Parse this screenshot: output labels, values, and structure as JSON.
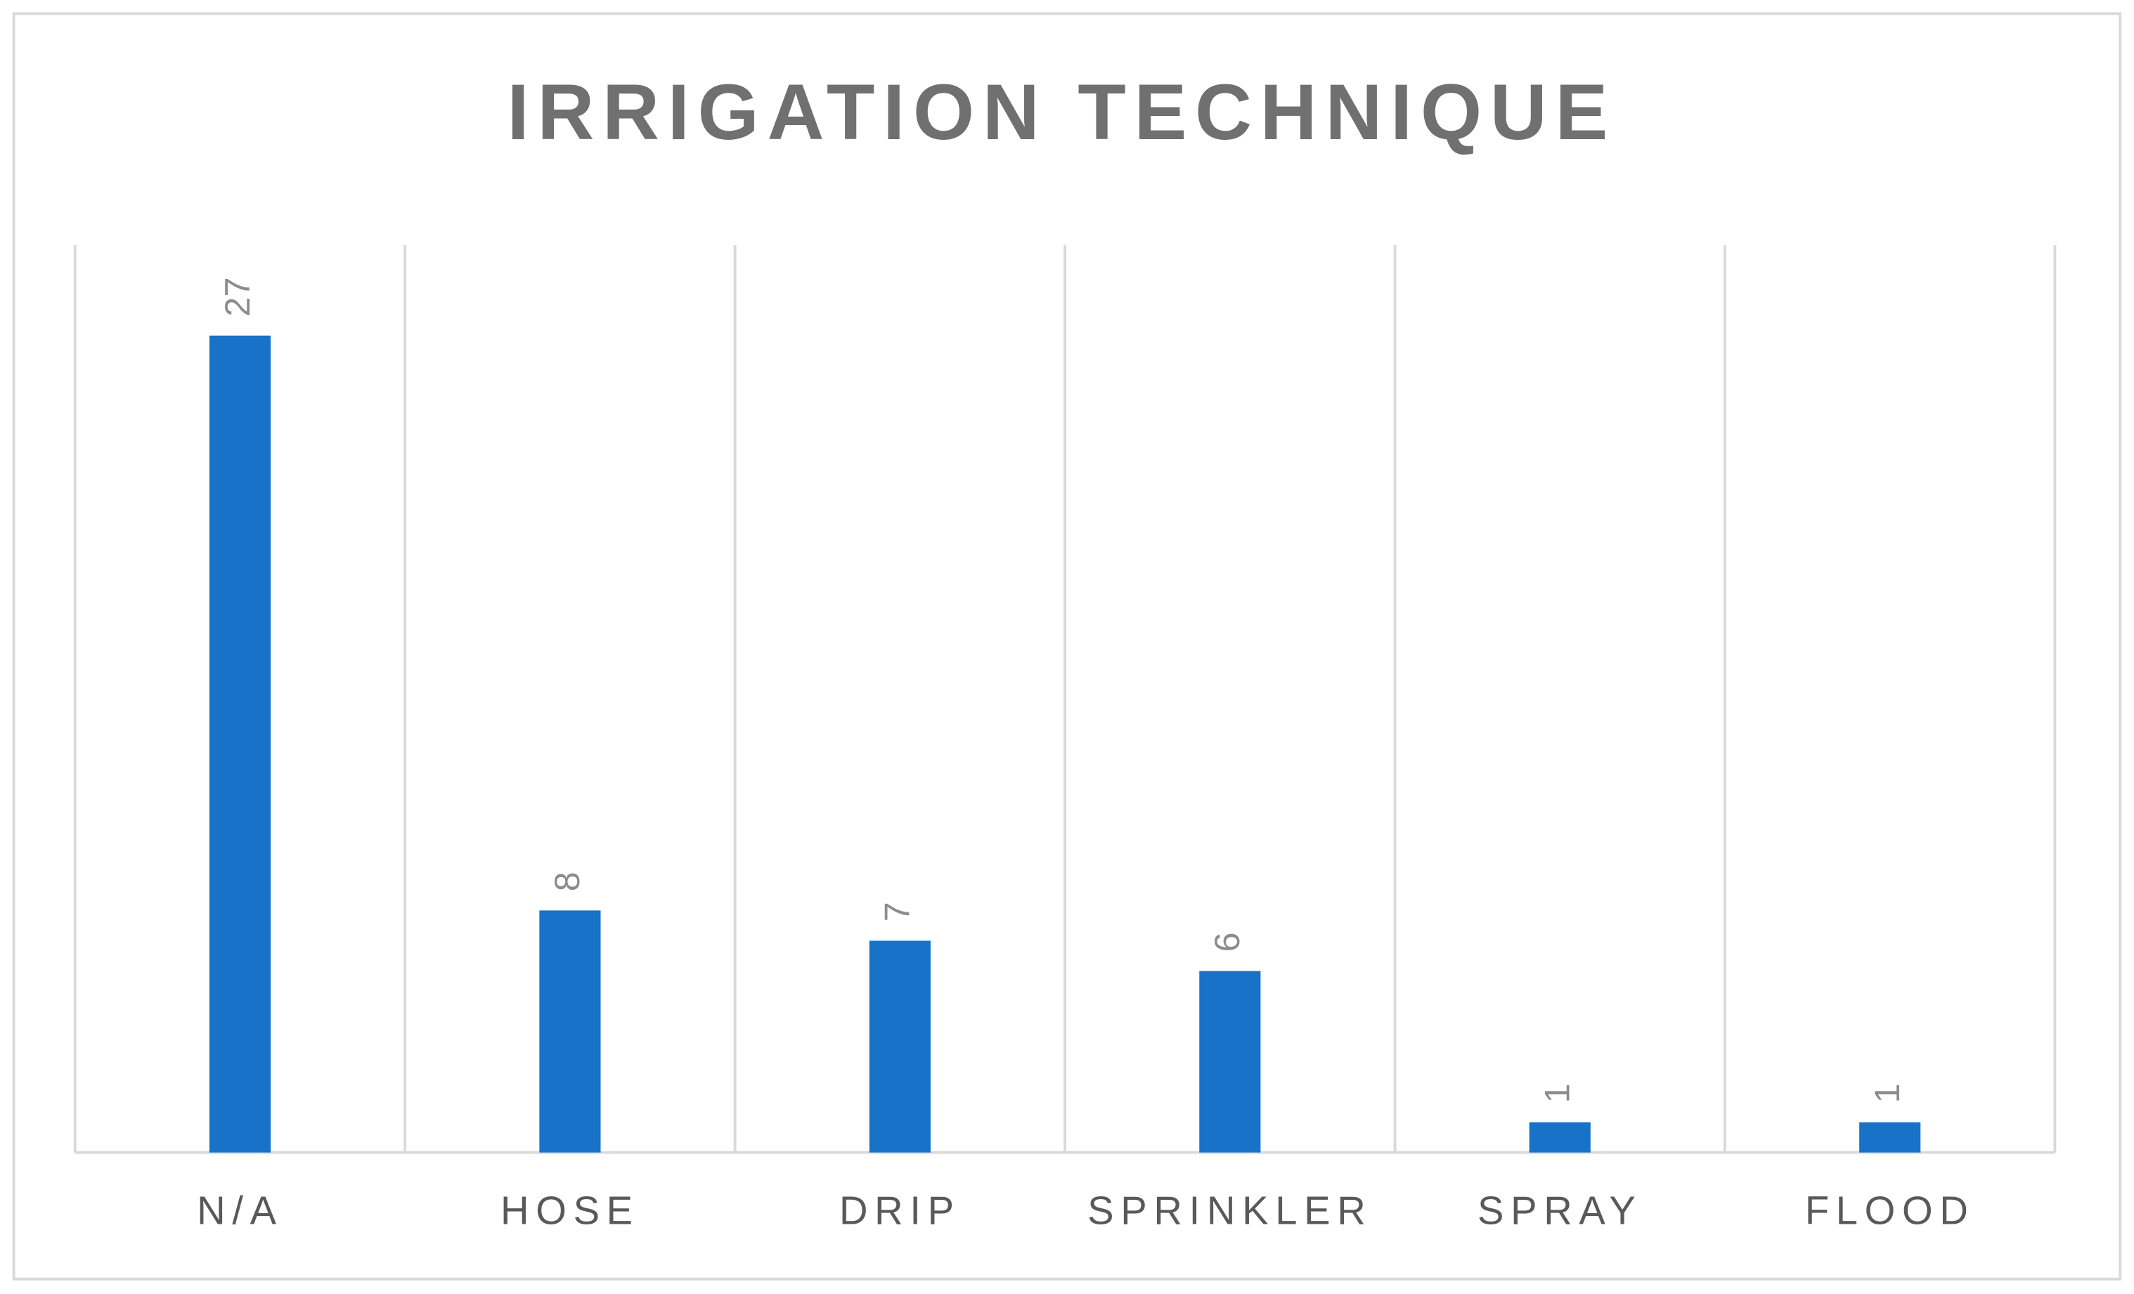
{
  "chart_data": {
    "type": "bar",
    "title": "IRRIGATION TECHNIQUE",
    "categories": [
      "N/A",
      "HOSE",
      "DRIP",
      "SPRINKLER",
      "SPRAY",
      "FLOOD"
    ],
    "values": [
      27,
      8,
      7,
      6,
      1,
      1
    ],
    "color": "#1772c8",
    "ylim": [
      0,
      30
    ],
    "data_labels": true,
    "grid": "category-separators"
  }
}
